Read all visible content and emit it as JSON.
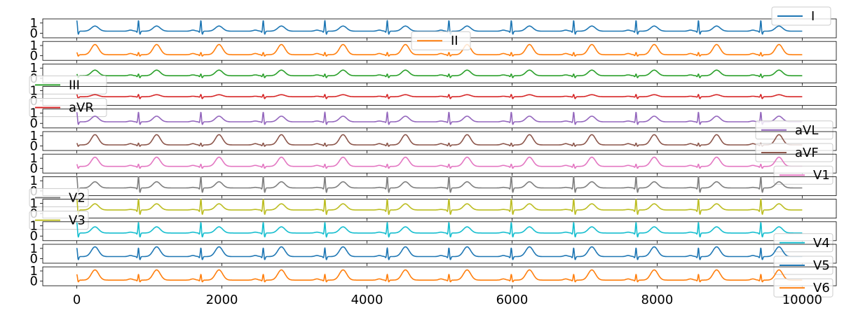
{
  "chart_data": {
    "type": "line",
    "title": "",
    "xlabel": "",
    "ylabel": "",
    "xlim": [
      -470,
      10470
    ],
    "xticks": [
      0,
      2000,
      4000,
      6000,
      8000,
      10000
    ],
    "xtick_labels": [
      "0",
      "2000",
      "4000",
      "6000",
      "8000",
      "10000"
    ],
    "ytick_labels": [
      "1",
      "0"
    ],
    "ylim": [
      -0.45,
      1.4
    ],
    "grid": false,
    "beat_times": [
      0,
      850,
      1710,
      2570,
      3420,
      4280,
      5130,
      5990,
      6850,
      7710,
      8570,
      9430
    ],
    "series": [
      {
        "name": "I",
        "color": "#1f77b4",
        "legend_loc": "top-right",
        "baseline": 0.2,
        "r": 1.1,
        "q": -0.15,
        "s": -0.35,
        "t": 0.5,
        "p": 0.1
      },
      {
        "name": "II",
        "color": "#ff7f0e",
        "legend_loc": "top-center",
        "baseline": 0.1,
        "r": 0.25,
        "q": -0.1,
        "s": -0.15,
        "t": 1.0,
        "p": 0.12
      },
      {
        "name": "III",
        "color": "#2ca02c",
        "legend_loc": "bottom-left",
        "baseline": 0.25,
        "r": 0.2,
        "q": -0.1,
        "s": -0.2,
        "t": 0.55,
        "p": 0.08
      },
      {
        "name": "aVR",
        "color": "#d62728",
        "legend_loc": "bottom-left",
        "baseline": 0.4,
        "r": 0.25,
        "q": -0.05,
        "s": -0.2,
        "t": 0.2,
        "p": 0.05
      },
      {
        "name": "aVL",
        "color": "#9467bd",
        "legend_loc": "bottom-right",
        "baseline": 0.15,
        "r": 1.0,
        "q": -0.1,
        "s": -0.3,
        "t": 0.55,
        "p": 0.08
      },
      {
        "name": "aVF",
        "color": "#8c564b",
        "legend_loc": "bottom-right",
        "baseline": 0.1,
        "r": 0.2,
        "q": -0.1,
        "s": -0.15,
        "t": 1.0,
        "p": 0.12
      },
      {
        "name": "V1",
        "color": "#e377c2",
        "legend_loc": "bottom-right",
        "baseline": 0.2,
        "r": 0.25,
        "q": -0.1,
        "s": -0.2,
        "t": 0.9,
        "p": 0.1
      },
      {
        "name": "V2",
        "color": "#7f7f7f",
        "legend_loc": "bottom-left",
        "baseline": 0.3,
        "r": 1.2,
        "q": -0.15,
        "s": -0.5,
        "t": 0.6,
        "p": 0.05
      },
      {
        "name": "V3",
        "color": "#bcbd22",
        "legend_loc": "bottom-left",
        "baseline": 0.35,
        "r": 1.2,
        "q": -0.2,
        "s": -0.5,
        "t": 0.6,
        "p": 0.05
      },
      {
        "name": "V4",
        "color": "#17becf",
        "legend_loc": "bottom-right",
        "baseline": 0.3,
        "r": 1.1,
        "q": -0.15,
        "s": -0.45,
        "t": 0.6,
        "p": 0.08
      },
      {
        "name": "V5",
        "color": "#1f77b4",
        "legend_loc": "bottom-right",
        "baseline": 0.2,
        "r": 0.9,
        "q": -0.15,
        "s": -0.35,
        "t": 0.95,
        "p": 0.1
      },
      {
        "name": "V6",
        "color": "#ff7f0e",
        "legend_loc": "bottom-right",
        "baseline": 0.1,
        "r": 0.6,
        "q": -0.1,
        "s": -0.2,
        "t": 1.0,
        "p": 0.12
      }
    ]
  }
}
